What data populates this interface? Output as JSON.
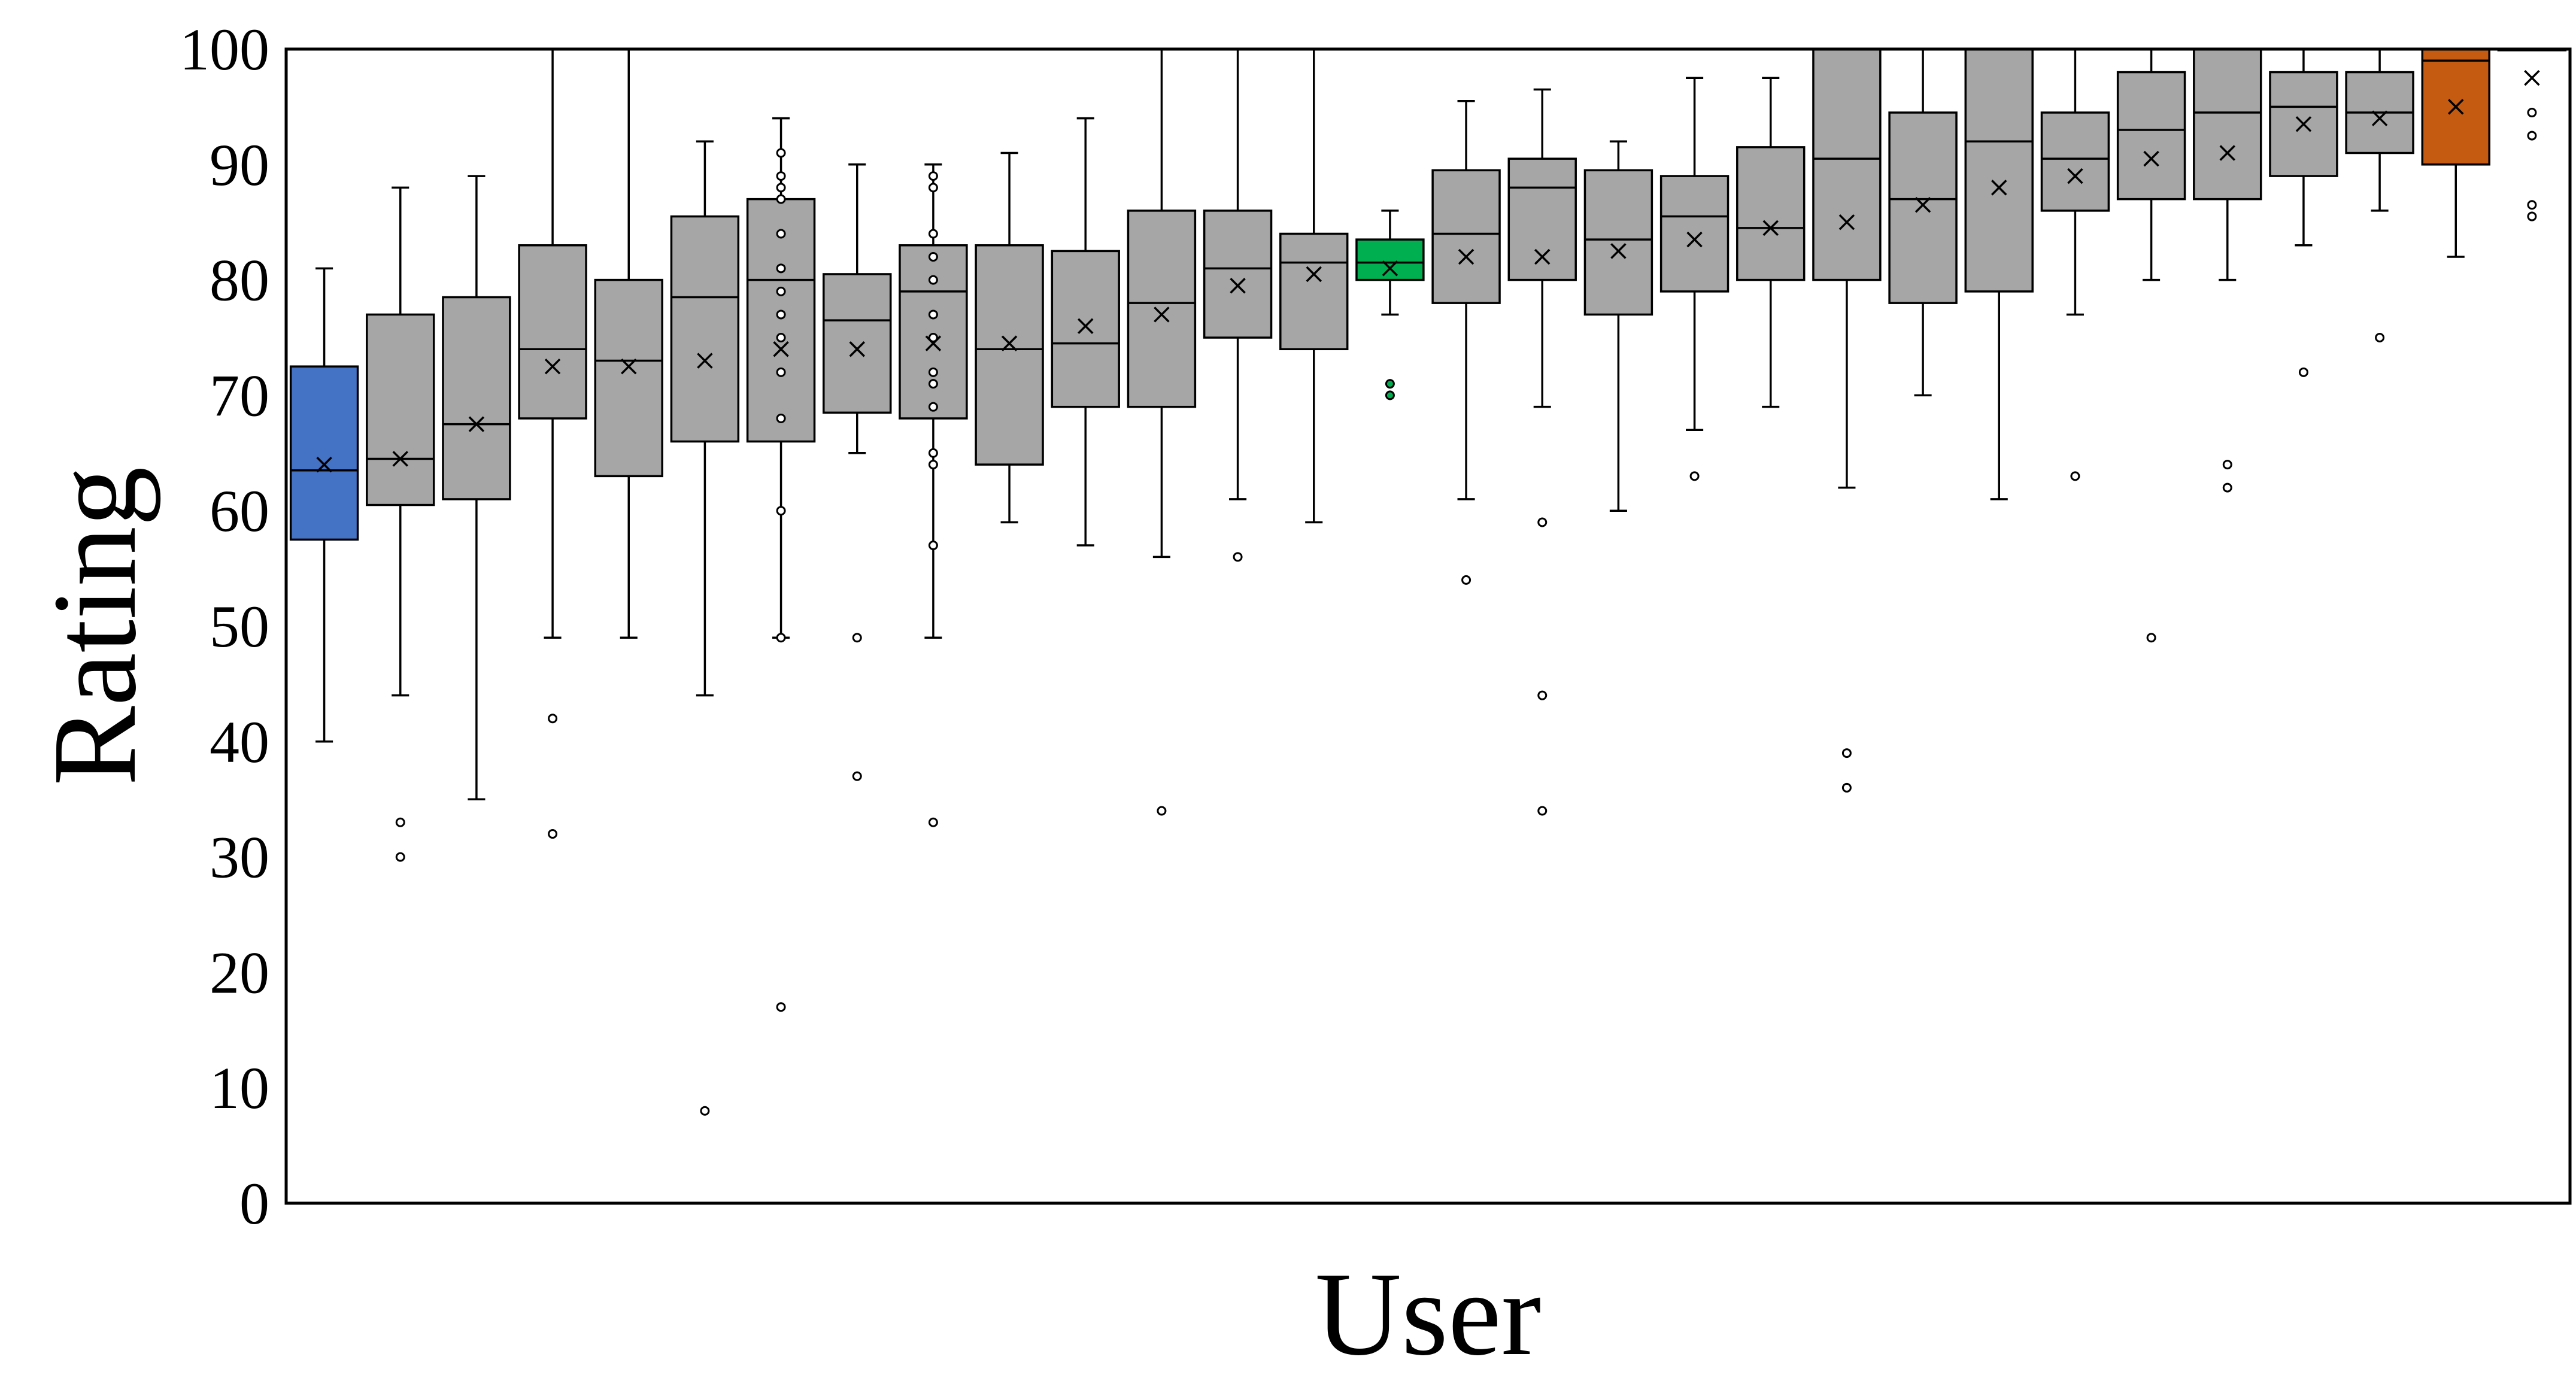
{
  "chart_data": {
    "type": "box",
    "title": "",
    "xlabel": "User",
    "ylabel": "Rating",
    "ylim": [
      0,
      100
    ],
    "yticks": [
      0,
      10,
      20,
      30,
      40,
      50,
      60,
      70,
      80,
      90,
      100
    ],
    "grid": false,
    "legend": "none",
    "colors": {
      "default_box": "#a6a6a6",
      "first_box": "#4472c4",
      "highlight_box": "#00b050",
      "last_colored_box": "#c55a11",
      "line": "#000000"
    },
    "boxes": [
      {
        "whisker_low": 40,
        "q1": 57.5,
        "median": 63.5,
        "q3": 72.5,
        "whisker_high": 81,
        "mean": 64,
        "outliers": [],
        "color": "#4472c4"
      },
      {
        "whisker_low": 44,
        "q1": 60.5,
        "median": 64.5,
        "q3": 77,
        "whisker_high": 88,
        "mean": 64.5,
        "outliers": [
          33,
          30
        ]
      },
      {
        "whisker_low": 35,
        "q1": 61,
        "median": 67.5,
        "q3": 78.5,
        "whisker_high": 89,
        "mean": 67.5,
        "outliers": []
      },
      {
        "whisker_low": 49,
        "q1": 68,
        "median": 74,
        "q3": 83,
        "whisker_high": 100,
        "mean": 72.5,
        "outliers": [
          42,
          32
        ]
      },
      {
        "whisker_low": 49,
        "q1": 63,
        "median": 73,
        "q3": 80,
        "whisker_high": 100,
        "mean": 72.5,
        "outliers": []
      },
      {
        "whisker_low": 44,
        "q1": 66,
        "median": 78.5,
        "q3": 85.5,
        "whisker_high": 92,
        "mean": 73,
        "outliers": [
          8
        ]
      },
      {
        "whisker_low": 49,
        "q1": 66,
        "median": 80,
        "q3": 87,
        "whisker_high": 94,
        "mean": 74,
        "outliers": [
          91,
          89,
          88,
          87,
          84,
          81,
          79,
          77,
          75,
          72,
          68,
          60,
          49,
          17
        ]
      },
      {
        "whisker_low": 65,
        "q1": 68.5,
        "median": 76.5,
        "q3": 80.5,
        "whisker_high": 90,
        "mean": 74,
        "outliers": [
          49,
          37
        ]
      },
      {
        "whisker_low": 49,
        "q1": 68,
        "median": 79,
        "q3": 83,
        "whisker_high": 90,
        "mean": 74.5,
        "outliers": [
          89,
          88,
          84,
          82,
          80,
          77,
          75,
          72,
          71,
          69,
          65,
          64,
          57,
          33
        ]
      },
      {
        "whisker_low": 59,
        "q1": 64,
        "median": 74,
        "q3": 83,
        "whisker_high": 91,
        "mean": 74.5,
        "outliers": []
      },
      {
        "whisker_low": 57,
        "q1": 69,
        "median": 74.5,
        "q3": 82.5,
        "whisker_high": 94,
        "mean": 76,
        "outliers": []
      },
      {
        "whisker_low": 56,
        "q1": 69,
        "median": 78,
        "q3": 86,
        "whisker_high": 100,
        "mean": 77,
        "outliers": [
          34
        ]
      },
      {
        "whisker_low": 61,
        "q1": 75,
        "median": 81,
        "q3": 86,
        "whisker_high": 100,
        "mean": 79.5,
        "outliers": [
          56
        ]
      },
      {
        "whisker_low": 59,
        "q1": 74,
        "median": 81.5,
        "q3": 84,
        "whisker_high": 100,
        "mean": 80.5,
        "outliers": []
      },
      {
        "whisker_low": 77,
        "q1": 80,
        "median": 81.5,
        "q3": 83.5,
        "whisker_high": 86,
        "mean": 81,
        "outliers": [
          71,
          70
        ],
        "color": "#00b050"
      },
      {
        "whisker_low": 61,
        "q1": 78,
        "median": 84,
        "q3": 89.5,
        "whisker_high": 95.5,
        "mean": 82,
        "outliers": [
          54
        ]
      },
      {
        "whisker_low": 69,
        "q1": 80,
        "median": 88,
        "q3": 90.5,
        "whisker_high": 96.5,
        "mean": 82,
        "outliers": [
          59,
          44,
          34
        ]
      },
      {
        "whisker_low": 60,
        "q1": 77,
        "median": 83.5,
        "q3": 89.5,
        "whisker_high": 92,
        "mean": 82.5,
        "outliers": []
      },
      {
        "whisker_low": 67,
        "q1": 79,
        "median": 85.5,
        "q3": 89,
        "whisker_high": 97.5,
        "mean": 83.5,
        "outliers": [
          63
        ]
      },
      {
        "whisker_low": 69,
        "q1": 80,
        "median": 84.5,
        "q3": 91.5,
        "whisker_high": 97.5,
        "mean": 84.5,
        "outliers": []
      },
      {
        "whisker_low": 62,
        "q1": 80,
        "median": 90.5,
        "q3": 100,
        "whisker_high": 100,
        "mean": 85,
        "outliers": [
          39,
          36
        ]
      },
      {
        "whisker_low": 70,
        "q1": 78,
        "median": 87,
        "q3": 94.5,
        "whisker_high": 100,
        "mean": 86.5,
        "outliers": []
      },
      {
        "whisker_low": 61,
        "q1": 79,
        "median": 92,
        "q3": 100,
        "whisker_high": 100,
        "mean": 88,
        "outliers": []
      },
      {
        "whisker_low": 77,
        "q1": 86,
        "median": 90.5,
        "q3": 94.5,
        "whisker_high": 100,
        "mean": 89,
        "outliers": [
          63
        ]
      },
      {
        "whisker_low": 80,
        "q1": 87,
        "median": 93,
        "q3": 98,
        "whisker_high": 100,
        "mean": 90.5,
        "outliers": [
          49
        ]
      },
      {
        "whisker_low": 80,
        "q1": 87,
        "median": 94.5,
        "q3": 100,
        "whisker_high": 100,
        "mean": 91,
        "outliers": [
          64,
          62
        ]
      },
      {
        "whisker_low": 83,
        "q1": 89,
        "median": 95,
        "q3": 98,
        "whisker_high": 100,
        "mean": 93.5,
        "outliers": [
          72
        ]
      },
      {
        "whisker_low": 86,
        "q1": 91,
        "median": 94.5,
        "q3": 98,
        "whisker_high": 100,
        "mean": 94,
        "outliers": [
          75
        ]
      },
      {
        "whisker_low": 82,
        "q1": 90,
        "median": 99,
        "q3": 100,
        "whisker_high": 100,
        "mean": 95,
        "outliers": [],
        "color": "#c55a11"
      },
      {
        "whisker_low": 100,
        "q1": 100,
        "median": 100,
        "q3": 100,
        "whisker_high": 100,
        "mean": 97.5,
        "outliers": [
          94.5,
          92.5,
          86.5,
          85.5
        ]
      }
    ]
  }
}
